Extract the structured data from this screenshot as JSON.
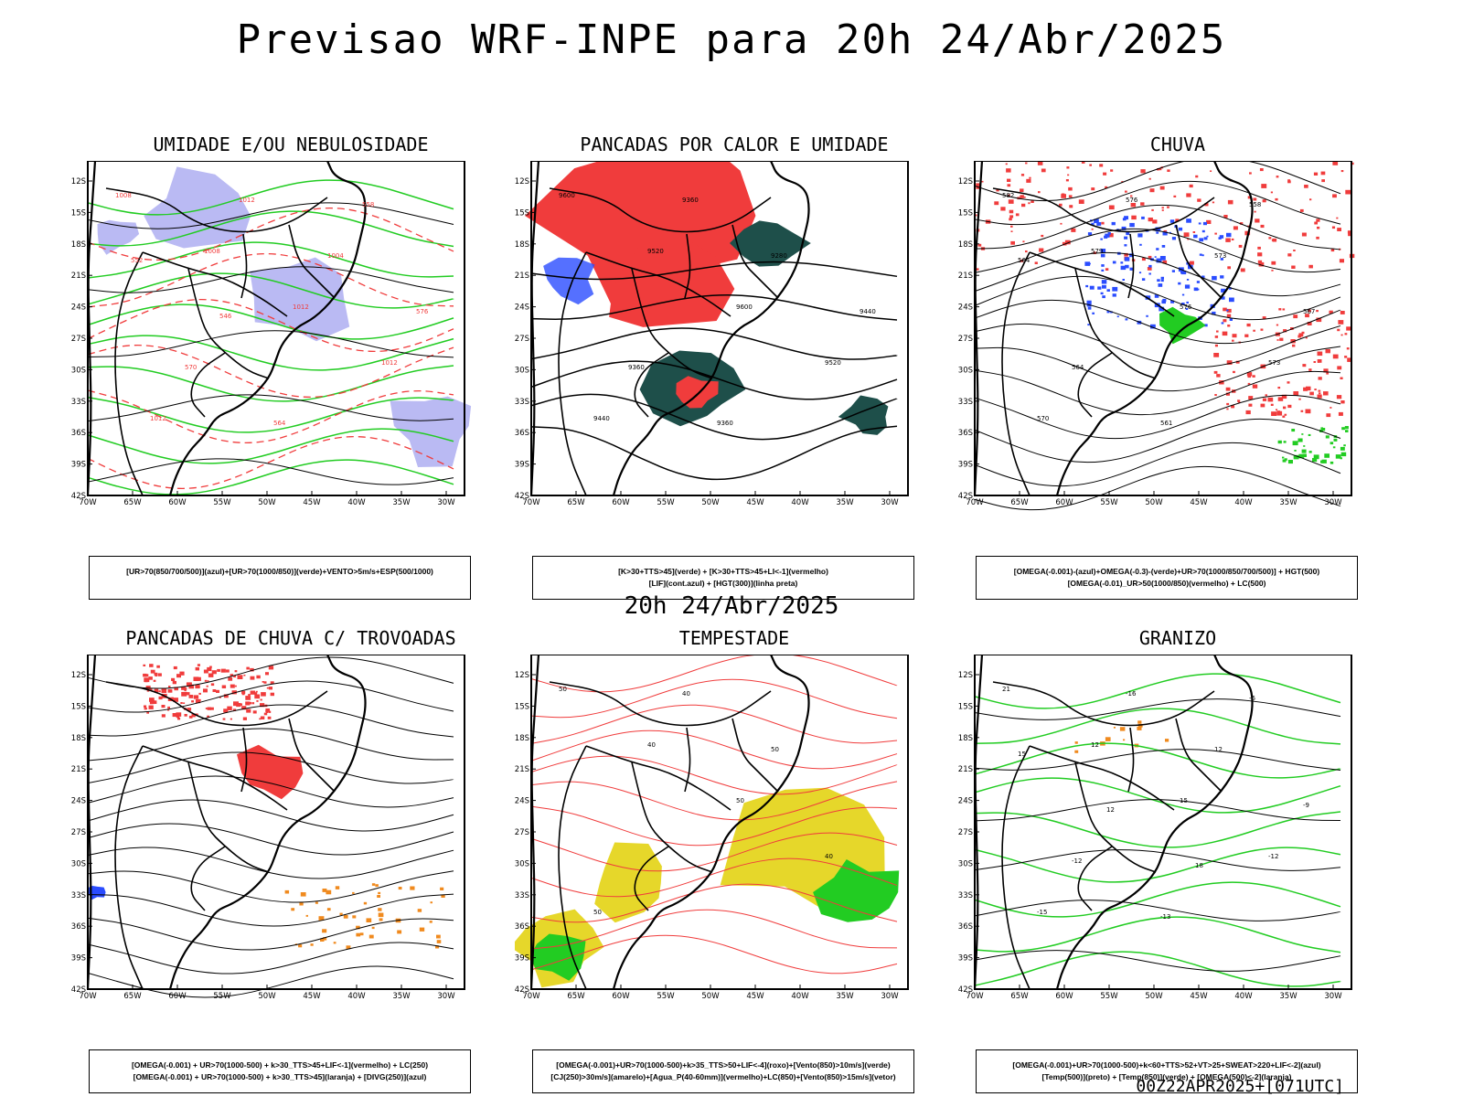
{
  "main_title": "Previsao WRF-INPE  para 20h 24/Abr/2025",
  "mid_title": "20h 24/Abr/2025",
  "footer": "00Z22APR2025+[071UTC]",
  "axes": {
    "lat_ticks": [
      "12S",
      "15S",
      "18S",
      "21S",
      "24S",
      "27S",
      "30S",
      "33S",
      "36S",
      "39S",
      "42S"
    ],
    "lon_ticks": [
      "70W",
      "65W",
      "60W",
      "55W",
      "50W",
      "45W",
      "40W",
      "35W",
      "30W"
    ]
  },
  "colors": {
    "red": "#f03c3c",
    "green": "#22cc22",
    "blue": "#2a4cff",
    "lavender": "#a9a9f0",
    "darkteal": "#1e4f4a",
    "yellow": "#e6d72a",
    "orange": "#f08a1e"
  },
  "chart_data": [
    {
      "type": "heatmap",
      "title": "UMIDADE E/OU NEBULOSIDADE",
      "legend_line1": "[UR>70(850/700/500)](azul)+[UR>70(1000/850)](verde)+VENTO>5m/s+ESP(500/1000)",
      "legend_line2": "",
      "contour_labels": [
        "1008",
        "1008",
        "1012",
        "1012",
        "1012",
        "1012",
        "1004",
        "576",
        "570",
        "564",
        "558",
        "552",
        "546"
      ],
      "xlim": [
        70,
        28
      ],
      "ylim": [
        11,
        42
      ]
    },
    {
      "type": "heatmap",
      "title": "PANCADAS POR CALOR E UMIDADE",
      "legend_line1": "[K>30+TTS>45](verde) + [K>30+TTS>45+LI<-1](vermelho)",
      "legend_line2": "[LIF](cont.azul) + [HGT(300)](linha preta)",
      "contour_labels": [
        "9600",
        "9520",
        "9600",
        "9520",
        "9440",
        "9360",
        "9280",
        "9440",
        "9360",
        "9360"
      ],
      "xlim": [
        70,
        28
      ],
      "ylim": [
        11,
        42
      ]
    },
    {
      "type": "heatmap",
      "title": "CHUVA",
      "legend_line1": "[OMEGA(-0.001)-(azul)+OMEGA(-0.3)-(verde)+UR>70(1000/850/700/500)] + HGT(500)",
      "legend_line2": "[OMEGA(-0.01)_UR>50(1000/850)(vermelho) + LC(500)",
      "contour_labels": [
        "582",
        "579",
        "576",
        "573",
        "570",
        "576",
        "573",
        "567",
        "564",
        "561",
        "558",
        "564"
      ],
      "xlim": [
        70,
        28
      ],
      "ylim": [
        11,
        42
      ]
    },
    {
      "type": "heatmap",
      "title": "PANCADAS DE CHUVA C/ TROVOADAS",
      "legend_line1": "[OMEGA(-0.001) + UR>70(1000-500) + k>30_TTS>45+LIF<-1](vermelho) + LC(250)",
      "legend_line2": "[OMEGA(-0.001) + UR>70(1000-500) + k>30_TTS>45](laranja) + [DIVG(250)](azul)",
      "contour_labels": [],
      "xlim": [
        70,
        28
      ],
      "ylim": [
        11,
        42
      ]
    },
    {
      "type": "heatmap",
      "title": "TEMPESTADE",
      "legend_line1": "[OMEGA(-0.001)+UR>70(1000-500)+k>35_TTS>50+LIF<-4](roxo)+[Vento(850)>10m/s](verde)",
      "legend_line2": "[CJ(250)>30m/s](amarelo)+[Agua_P(40-60mm)](vermelho)+LC(850)+[Vento(850)>15m/s](vetor)",
      "contour_labels": [
        "50",
        "40",
        "50",
        "40",
        "50",
        "40",
        "50"
      ],
      "xlim": [
        70,
        28
      ],
      "ylim": [
        11,
        42
      ]
    },
    {
      "type": "heatmap",
      "title": "GRANIZO",
      "legend_line1": "[OMEGA(-0.001)+UR>70(1000-500)+k<60+TTS>52+VT>25+SWEAT>220+LIF<-2](azul)",
      "legend_line2": "[Temp(500)](preto) + [Temp(850)](verde) + [OMEGA(500)<-2](laranja)",
      "contour_labels": [
        "21",
        "12",
        "15",
        "-12",
        "-15",
        "-16",
        "12",
        "-9",
        "-12",
        "-13",
        "-6",
        "15",
        "12",
        "18"
      ],
      "xlim": [
        70,
        28
      ],
      "ylim": [
        11,
        42
      ]
    }
  ]
}
